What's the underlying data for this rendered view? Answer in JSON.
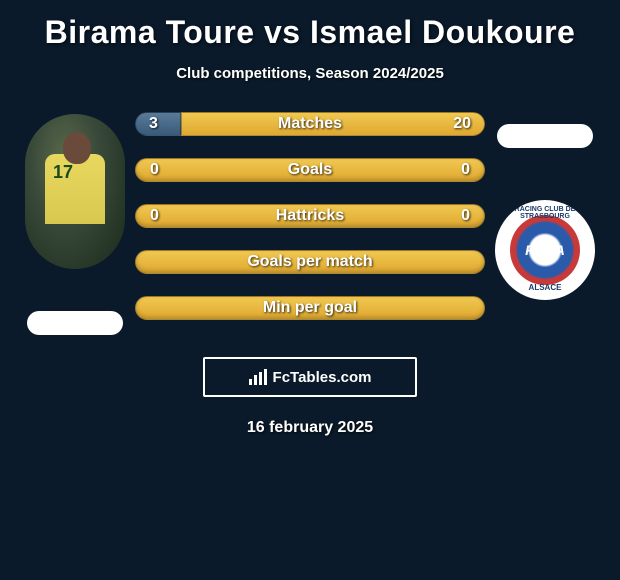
{
  "title": "Birama Toure vs Ismael Doukoure",
  "subtitle": "Club competitions, Season 2024/2025",
  "date": "16 february 2025",
  "footer_brand": "FcTables.com",
  "player_left": {
    "jersey_number": "17",
    "jersey_color": "#e8d860"
  },
  "club_right": {
    "name": "RCSA",
    "outer_text_top": "RACING CLUB DE STRASBOURG",
    "outer_text_bottom": "ALSACE",
    "ring_outer_color": "#c83a3a",
    "ring_inner_color": "#2a5aaa"
  },
  "stats": [
    {
      "label": "Matches",
      "left_value": "3",
      "right_value": "20",
      "type": "split",
      "left_pct": 13,
      "left_color": "#4a6a8a",
      "right_color": "#e8b840"
    },
    {
      "label": "Goals",
      "left_value": "0",
      "right_value": "0",
      "type": "full",
      "bar_color": "#e8b840"
    },
    {
      "label": "Hattricks",
      "left_value": "0",
      "right_value": "0",
      "type": "full",
      "bar_color": "#e8b840"
    },
    {
      "label": "Goals per match",
      "left_value": "",
      "right_value": "",
      "type": "full",
      "bar_color": "#e8b840"
    },
    {
      "label": "Min per goal",
      "left_value": "",
      "right_value": "",
      "type": "full",
      "bar_color": "#e8b840"
    }
  ],
  "colors": {
    "background": "#0a1a2a",
    "text": "#ffffff"
  }
}
